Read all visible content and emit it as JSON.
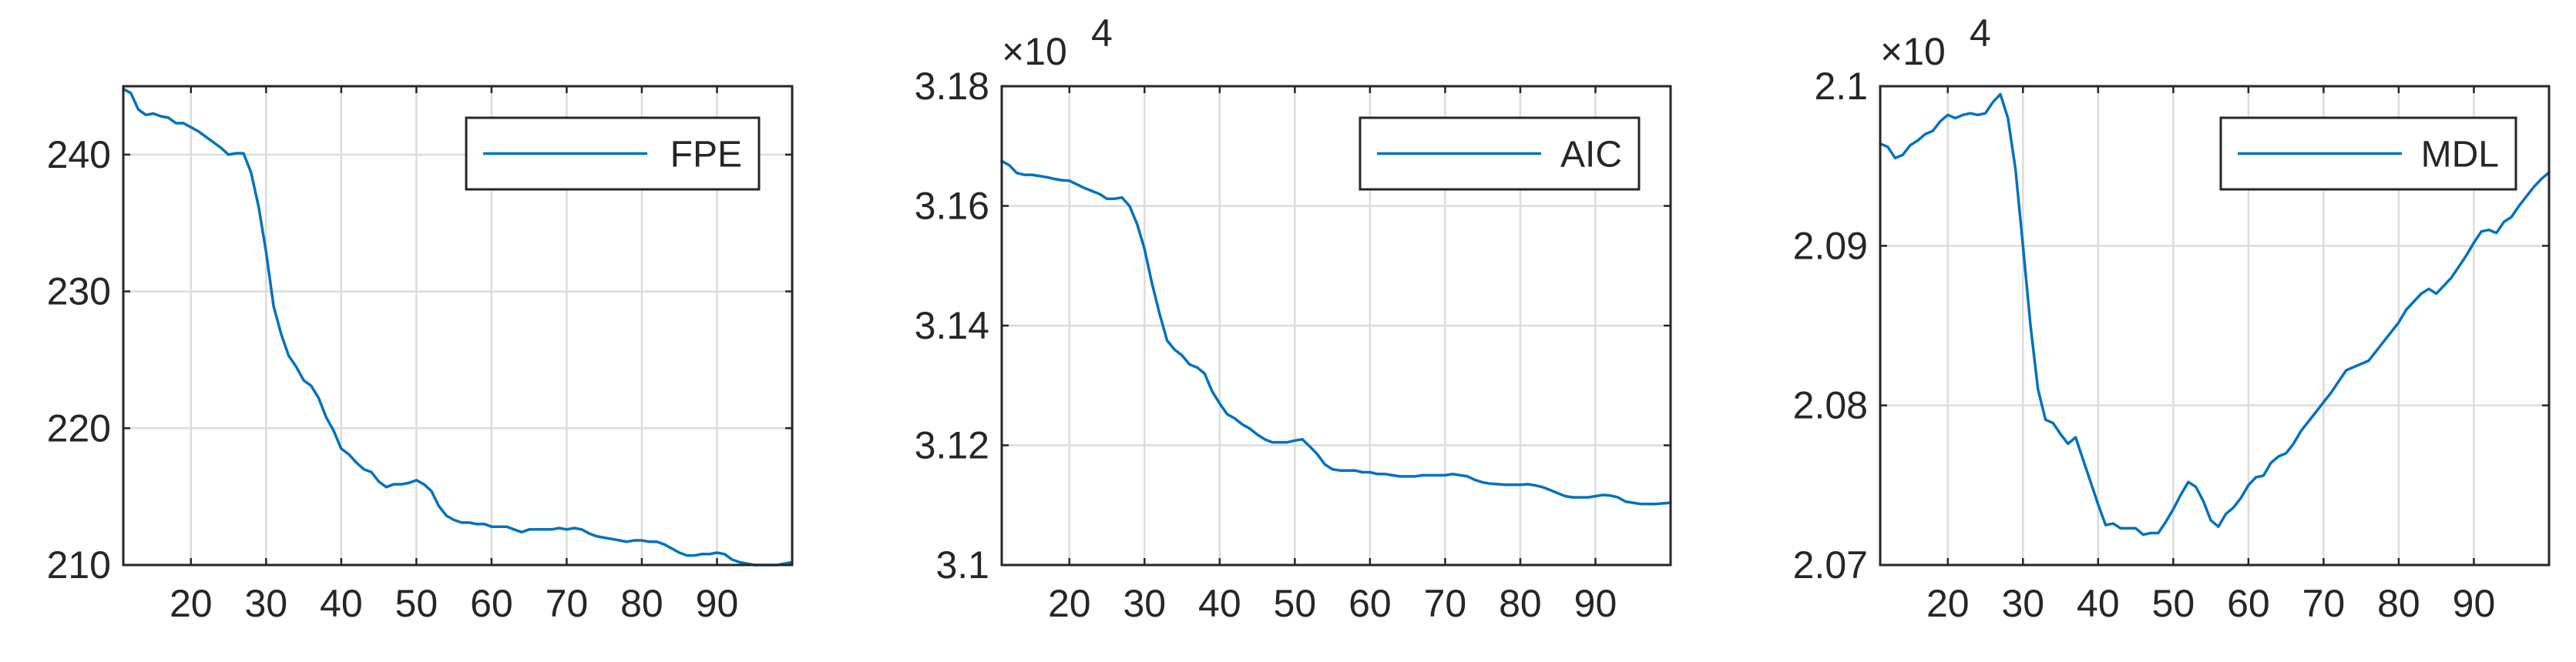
{
  "chart_data": [
    {
      "type": "line",
      "xlim": [
        11,
        100
      ],
      "ylim": [
        210,
        245
      ],
      "xticks": [
        20,
        30,
        40,
        50,
        60,
        70,
        80,
        90
      ],
      "yticks": [
        210,
        220,
        230,
        240
      ],
      "xtick_labels": [
        "20",
        "30",
        "40",
        "50",
        "60",
        "70",
        "80",
        "90"
      ],
      "ytick_labels": [
        "210",
        "220",
        "230",
        "240"
      ],
      "exponent_label": "",
      "grid": true,
      "legend": "top-right",
      "color": "#0072BD",
      "series": [
        {
          "name": "FPE",
          "x": [
            11,
            12,
            13,
            14,
            15,
            16,
            17,
            18,
            19,
            20,
            21,
            22,
            23,
            24,
            25,
            26,
            27,
            28,
            29,
            30,
            31,
            32,
            33,
            34,
            35,
            36,
            37,
            38,
            39,
            40,
            41,
            42,
            43,
            44,
            45,
            46,
            47,
            48,
            49,
            50,
            51,
            52,
            53,
            54,
            55,
            56,
            57,
            58,
            59,
            60,
            61,
            62,
            63,
            64,
            65,
            66,
            67,
            68,
            69,
            70,
            71,
            72,
            73,
            74,
            75,
            76,
            77,
            78,
            79,
            80,
            81,
            82,
            83,
            84,
            85,
            86,
            87,
            88,
            89,
            90,
            91,
            92,
            93,
            94,
            95,
            96,
            97,
            98,
            99,
            100
          ],
          "y": [
            244.8,
            244.5,
            243.3,
            242.9,
            243.0,
            242.8,
            242.7,
            242.3,
            242.3,
            242.0,
            241.7,
            241.3,
            240.9,
            240.5,
            240.0,
            240.1,
            240.1,
            238.7,
            236.2,
            232.9,
            228.9,
            226.9,
            225.3,
            224.5,
            223.5,
            223.1,
            222.2,
            220.8,
            219.8,
            218.5,
            218.1,
            217.5,
            217.0,
            216.8,
            216.1,
            215.7,
            215.9,
            215.9,
            216.0,
            216.2,
            215.9,
            215.4,
            214.3,
            213.6,
            213.3,
            213.1,
            213.1,
            213.0,
            213.0,
            212.8,
            212.8,
            212.8,
            212.6,
            212.4,
            212.6,
            212.6,
            212.6,
            212.6,
            212.7,
            212.6,
            212.7,
            212.6,
            212.3,
            212.1,
            212.0,
            211.9,
            211.8,
            211.7,
            211.8,
            211.8,
            211.7,
            211.7,
            211.5,
            211.2,
            210.9,
            210.7,
            210.7,
            210.8,
            210.8,
            210.9,
            210.8,
            210.4,
            210.2,
            210.1,
            210.0,
            210.0,
            210.0,
            210.0,
            210.1,
            210.2
          ]
        }
      ]
    },
    {
      "type": "line",
      "xlim": [
        11,
        100
      ],
      "ylim": [
        3.1,
        3.18
      ],
      "xticks": [
        20,
        30,
        40,
        50,
        60,
        70,
        80,
        90
      ],
      "yticks": [
        3.1,
        3.12,
        3.14,
        3.16,
        3.18
      ],
      "xtick_labels": [
        "20",
        "30",
        "40",
        "50",
        "60",
        "70",
        "80",
        "90"
      ],
      "ytick_labels": [
        "3.1",
        "3.12",
        "3.14",
        "3.16",
        "3.18"
      ],
      "exponent_label": "×10",
      "exponent_power": "4",
      "grid": true,
      "legend": "top-right",
      "color": "#0072BD",
      "series": [
        {
          "name": "AIC",
          "x": [
            11,
            12,
            13,
            14,
            15,
            16,
            17,
            18,
            19,
            20,
            21,
            22,
            23,
            24,
            25,
            26,
            27,
            28,
            29,
            30,
            31,
            32,
            33,
            34,
            35,
            36,
            37,
            38,
            39,
            40,
            41,
            42,
            43,
            44,
            45,
            46,
            47,
            48,
            49,
            50,
            51,
            52,
            53,
            54,
            55,
            56,
            57,
            58,
            59,
            60,
            61,
            62,
            63,
            64,
            65,
            66,
            67,
            68,
            69,
            70,
            71,
            72,
            73,
            74,
            75,
            76,
            77,
            78,
            79,
            80,
            81,
            82,
            83,
            84,
            85,
            86,
            87,
            88,
            89,
            90,
            91,
            92,
            93,
            94,
            95,
            96,
            97,
            98,
            99,
            100
          ],
          "y": [
            3.1675,
            3.1668,
            3.1655,
            3.1652,
            3.1652,
            3.165,
            3.1648,
            3.1645,
            3.1643,
            3.1642,
            3.1636,
            3.163,
            3.1625,
            3.162,
            3.1612,
            3.1612,
            3.1614,
            3.16,
            3.157,
            3.1528,
            3.147,
            3.142,
            3.1375,
            3.136,
            3.135,
            3.1335,
            3.133,
            3.132,
            3.129,
            3.127,
            3.1252,
            3.1245,
            3.1235,
            3.1228,
            3.1218,
            3.121,
            3.1205,
            3.1205,
            3.1205,
            3.1208,
            3.121,
            3.1198,
            3.1185,
            3.1168,
            3.116,
            3.1158,
            3.1158,
            3.1158,
            3.1155,
            3.1155,
            3.1152,
            3.1152,
            3.115,
            3.1148,
            3.1148,
            3.1148,
            3.115,
            3.115,
            3.115,
            3.115,
            3.1152,
            3.115,
            3.1148,
            3.1142,
            3.1138,
            3.1136,
            3.1135,
            3.1134,
            3.1134,
            3.1134,
            3.1135,
            3.1133,
            3.113,
            3.1125,
            3.112,
            3.1115,
            3.1113,
            3.1113,
            3.1113,
            3.1115,
            3.1117,
            3.1116,
            3.1113,
            3.1106,
            3.1104,
            3.1102,
            3.1102,
            3.1102,
            3.1103,
            3.1104
          ]
        }
      ]
    },
    {
      "type": "line",
      "xlim": [
        11,
        100
      ],
      "ylim": [
        2.07,
        2.1
      ],
      "xticks": [
        20,
        30,
        40,
        50,
        60,
        70,
        80,
        90
      ],
      "yticks": [
        2.07,
        2.08,
        2.09,
        2.1
      ],
      "xtick_labels": [
        "20",
        "30",
        "40",
        "50",
        "60",
        "70",
        "80",
        "90"
      ],
      "ytick_labels": [
        "2.07",
        "2.08",
        "2.09",
        "2.1"
      ],
      "exponent_label": "×10",
      "exponent_power": "4",
      "grid": true,
      "legend": "top-right",
      "color": "#0072BD",
      "series": [
        {
          "name": "MDL",
          "x": [
            11,
            12,
            13,
            14,
            15,
            16,
            17,
            18,
            19,
            20,
            21,
            22,
            23,
            24,
            25,
            26,
            27,
            28,
            29,
            30,
            31,
            32,
            33,
            34,
            35,
            36,
            37,
            38,
            39,
            40,
            41,
            42,
            43,
            44,
            45,
            46,
            47,
            48,
            49,
            50,
            51,
            52,
            53,
            54,
            55,
            56,
            57,
            58,
            59,
            60,
            61,
            62,
            63,
            64,
            65,
            66,
            67,
            68,
            69,
            70,
            71,
            72,
            73,
            74,
            75,
            76,
            77,
            78,
            79,
            80,
            81,
            82,
            83,
            84,
            85,
            86,
            87,
            88,
            89,
            90,
            91,
            92,
            93,
            94,
            95,
            96,
            97,
            98,
            99,
            100
          ],
          "y": [
            2.0964,
            2.0962,
            2.0955,
            2.0957,
            2.0963,
            2.0966,
            2.097,
            2.0972,
            2.0978,
            2.0982,
            2.098,
            2.0982,
            2.0983,
            2.0982,
            2.0983,
            2.099,
            2.0995,
            2.098,
            2.0948,
            2.09,
            2.085,
            2.081,
            2.0791,
            2.0789,
            2.0782,
            2.0776,
            2.078,
            2.0766,
            2.0752,
            2.0738,
            2.0725,
            2.0726,
            2.0723,
            2.0723,
            2.0723,
            2.0719,
            2.072,
            2.072,
            2.0727,
            2.0735,
            2.0744,
            2.0752,
            2.0749,
            2.074,
            2.0728,
            2.0724,
            2.0732,
            2.0736,
            2.0742,
            2.075,
            2.0755,
            2.0756,
            2.0764,
            2.0768,
            2.077,
            2.0776,
            2.0784,
            2.079,
            2.0796,
            2.0802,
            2.0808,
            2.0815,
            2.0822,
            2.0824,
            2.0826,
            2.0828,
            2.0834,
            2.084,
            2.0846,
            2.0852,
            2.086,
            2.0865,
            2.087,
            2.0873,
            2.087,
            2.0875,
            2.088,
            2.0887,
            2.0894,
            2.0902,
            2.0909,
            2.091,
            2.0908,
            2.0915,
            2.0918,
            2.0925,
            2.0931,
            2.0937,
            2.0942,
            2.0946
          ]
        }
      ]
    }
  ]
}
